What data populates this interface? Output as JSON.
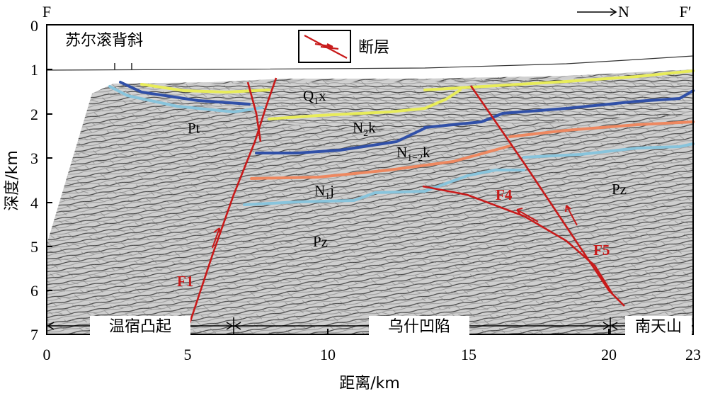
{
  "section": {
    "left_end": "F",
    "right_end": "F′",
    "north": "N"
  },
  "axes": {
    "x_label": "距离/km",
    "y_label": "深度/km",
    "x_ticks": [
      "0",
      "5",
      "10",
      "15",
      "20",
      "23"
    ],
    "y_ticks": [
      "0",
      "1",
      "2",
      "3",
      "4",
      "5",
      "6",
      "7"
    ]
  },
  "legend": {
    "label": "断层",
    "icon": "fault-symbol-icon",
    "color": "#c81a1a"
  },
  "structures": {
    "anticline": "苏尔滚背斜"
  },
  "zones": {
    "left": "温宿凸起",
    "middle": "乌什凹陷",
    "right": "南天山"
  },
  "units": {
    "pt": "Pt",
    "pz_left": "Pz",
    "pz_right": "Pz",
    "n1j_main": "N",
    "n1j_sub": "1",
    "n1j_tail": "j",
    "n12k_main": "N",
    "n12k_sub": "1−2",
    "n12k_tail": "k",
    "n2k_main": "N",
    "n2k_sub": "2",
    "n2k_tail": "k",
    "q1x_main": "Q",
    "q1x_sub": "1",
    "q1x_tail": "x"
  },
  "faults": {
    "f1": "F1",
    "f4": "F4",
    "f5": "F5"
  },
  "colors": {
    "fault": "#c81a1a",
    "q1x": "#e8ec5a",
    "n2k": "#3050a8",
    "n12k": "#ee8860",
    "n1j": "#88c4dc"
  }
}
